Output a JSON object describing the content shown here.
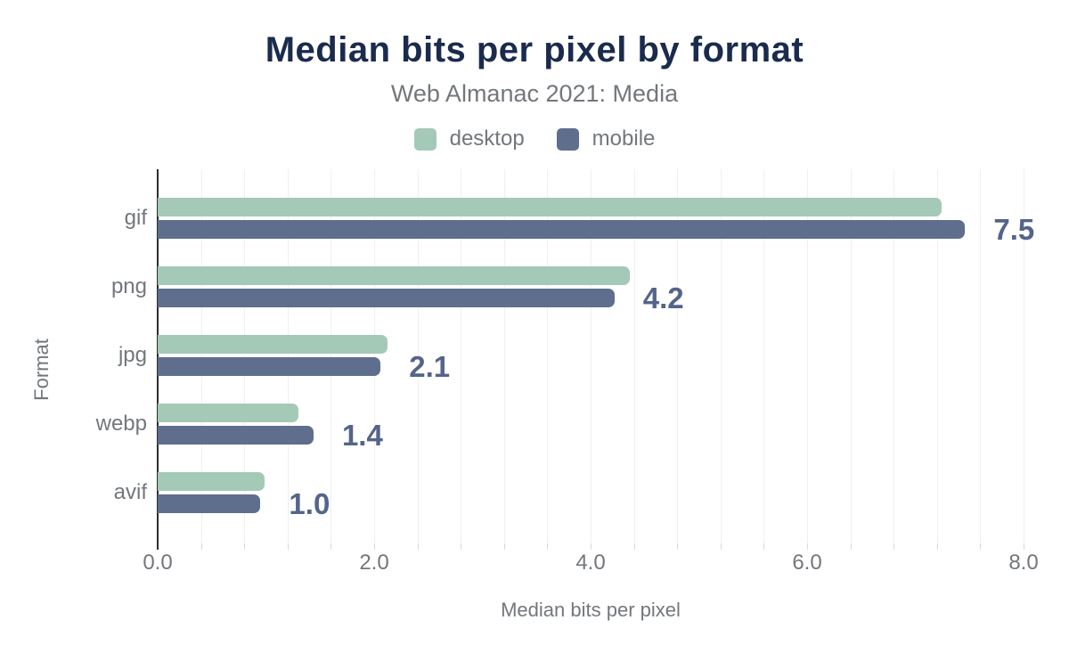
{
  "title": "Median bits per pixel by format",
  "subtitle": "Web Almanac 2021: Media",
  "legend": [
    {
      "label": "desktop",
      "color": "#a5c9b7"
    },
    {
      "label": "mobile",
      "color": "#5f6e8c"
    }
  ],
  "colors": {
    "title": "#1a2b4d",
    "text_muted": "#73777c",
    "desktop": "#a5c9b7",
    "mobile": "#5f6e8c",
    "value_label": "#54648a",
    "axis": "#2e2e2e",
    "gridline": "#f0f0f0",
    "tick": "#d9d9d9",
    "background": "#ffffff"
  },
  "chart_data": {
    "type": "bar",
    "orientation": "horizontal",
    "title": "Median bits per pixel by format",
    "subtitle": "Web Almanac 2021: Media",
    "categories": [
      "gif",
      "png",
      "jpg",
      "webp",
      "avif"
    ],
    "series": [
      {
        "name": "desktop",
        "color": "#a5c9b7",
        "values": [
          7.24,
          4.36,
          2.12,
          1.3,
          0.99
        ]
      },
      {
        "name": "mobile",
        "color": "#5f6e8c",
        "values": [
          7.46,
          4.22,
          2.06,
          1.44,
          0.95
        ]
      }
    ],
    "data_labels": [
      "7.5",
      "4.2",
      "2.1",
      "1.4",
      "1.0"
    ],
    "data_labels_series": "mobile",
    "xlabel": "Median bits per pixel",
    "ylabel": "Format",
    "xlim": [
      0,
      8.4
    ],
    "x_ticks": [
      0,
      2,
      4,
      6,
      8
    ],
    "x_tick_labels": [
      "0.0",
      "2.0",
      "4.0",
      "6.0",
      "8.0"
    ],
    "gridline_step": 0.4,
    "grid": "vertical-only",
    "legend_position": "top-center"
  }
}
